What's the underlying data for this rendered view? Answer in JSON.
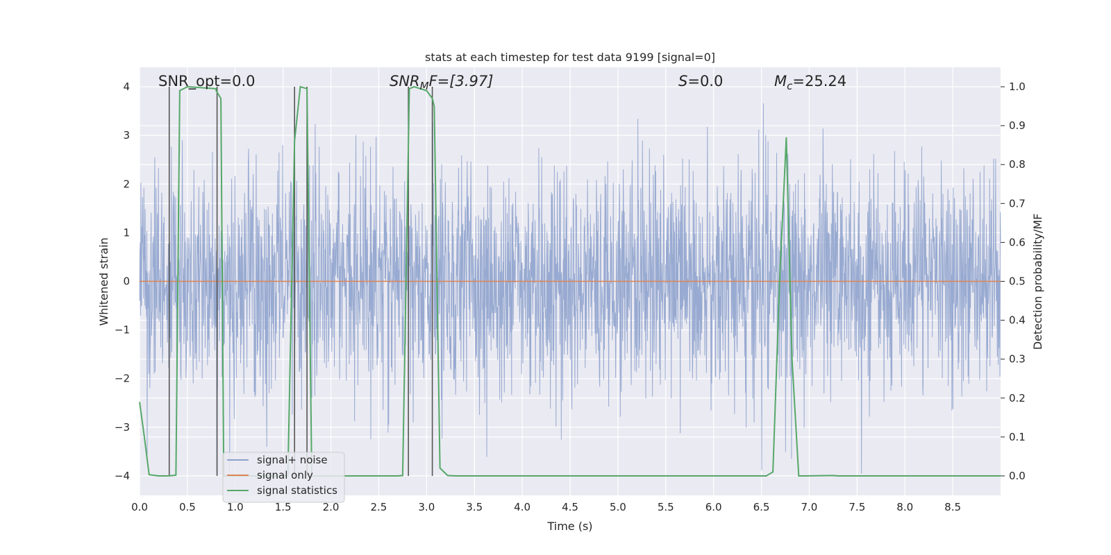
{
  "chart_data": {
    "type": "line",
    "title": "stats at each timestep for test data 9199 [signal=0]",
    "xlabel": "Time (s)",
    "ylabel": "Whitened strain",
    "ylabel_right": "Detection probability/MF",
    "xlim": [
      0.0,
      9.0
    ],
    "ylim": [
      -4.4,
      4.4
    ],
    "ylim_right": [
      -0.05,
      1.05
    ],
    "x_ticks": [
      "0.0",
      "0.5",
      "1.0",
      "1.5",
      "2.0",
      "2.5",
      "3.0",
      "3.5",
      "4.0",
      "4.5",
      "5.0",
      "5.5",
      "6.0",
      "6.5",
      "7.0",
      "7.5",
      "8.0",
      "8.5"
    ],
    "y_ticks": [
      "4",
      "3",
      "2",
      "1",
      "0",
      "−1",
      "−2",
      "−3",
      "−4"
    ],
    "y_ticks_right": [
      "1.0",
      "0.9",
      "0.8",
      "0.7",
      "0.6",
      "0.5",
      "0.4",
      "0.3",
      "0.2",
      "0.1",
      "0.0"
    ],
    "grid": true,
    "legend_position": "lower-left",
    "annotations": {
      "snr_opt": "SNR_opt=0.0",
      "snr_mf_sym": "SNR",
      "snr_mf_sub": "M",
      "snr_mf_rest": "F=[3.97]",
      "s_sym": "S",
      "s_rest": "=0.0",
      "mc_sym": "M",
      "mc_sub": "c",
      "mc_rest": "=25.24"
    },
    "series": [
      {
        "name": "signal+ noise",
        "color": "#8fa3cd",
        "description": "whitened noise strain, roughly symmetric around 0 with spikes to about +/-3.9",
        "envelope": [
          1.5,
          2.5,
          3.3
        ]
      },
      {
        "name": "signal only",
        "color": "#dd8452",
        "y": 0.0
      },
      {
        "name": "signal statistics",
        "color": "#55a868",
        "axis": "right",
        "x": [
          0.0,
          0.05,
          0.1,
          0.2,
          0.3,
          0.38,
          0.42,
          0.5,
          0.8,
          0.8,
          0.85,
          0.88,
          0.95,
          1.55,
          1.62,
          1.68,
          1.75,
          1.8,
          1.9,
          2.7,
          2.75,
          2.82,
          2.87,
          3.0,
          3.06,
          3.08,
          3.14,
          3.22,
          3.3,
          6.55,
          6.62,
          6.69,
          6.76,
          6.82,
          6.89,
          6.95,
          7.25,
          7.3,
          9.0
        ],
        "y": [
          0.19,
          0.1,
          0.003,
          0.0,
          0.0,
          0.002,
          0.99,
          1.0,
          0.995,
          0.99,
          0.97,
          0.0,
          0.0,
          0.0,
          0.86,
          1.0,
          0.995,
          0.0,
          0.0,
          0.0,
          0.001,
          0.995,
          1.0,
          0.99,
          0.97,
          0.95,
          0.02,
          0.001,
          0.0,
          0.0,
          0.01,
          0.5,
          0.87,
          0.3,
          0.0,
          0.0,
          0.001,
          0.0,
          0.0
        ]
      }
    ],
    "markers": {
      "color": "#555555",
      "x": [
        0.31,
        0.81,
        1.62,
        1.75,
        2.81,
        3.06
      ],
      "y_range": [
        -4.0,
        4.0
      ]
    }
  }
}
